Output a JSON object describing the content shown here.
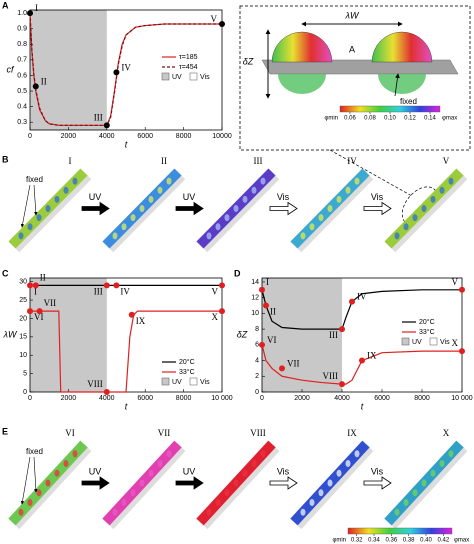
{
  "chart_data": [
    {
      "type": "line",
      "panel": "A",
      "x_label": "t",
      "y_label": "cf",
      "x": [
        0,
        100,
        200,
        300,
        500,
        800,
        1000,
        1500,
        2000,
        3000,
        4000,
        4200,
        4400,
        4600,
        4800,
        5000,
        5500,
        6000,
        7000,
        8000,
        10000
      ],
      "series": [
        {
          "name": "τ=185",
          "color": "#e02020",
          "dashed": false,
          "values": [
            1.0,
            0.75,
            0.6,
            0.5,
            0.38,
            0.31,
            0.29,
            0.28,
            0.28,
            0.28,
            0.28,
            0.34,
            0.5,
            0.68,
            0.8,
            0.86,
            0.91,
            0.92,
            0.93,
            0.93,
            0.93
          ]
        },
        {
          "name": "τ=454",
          "color": "#7a1010",
          "dashed": true,
          "values": [
            1.0,
            0.76,
            0.61,
            0.51,
            0.39,
            0.31,
            0.29,
            0.28,
            0.28,
            0.28,
            0.28,
            0.33,
            0.49,
            0.67,
            0.79,
            0.86,
            0.91,
            0.92,
            0.93,
            0.93,
            0.93
          ]
        }
      ],
      "points": [
        {
          "label": "I",
          "x": 0,
          "y": 1.0,
          "place": "right"
        },
        {
          "label": "II",
          "x": 300,
          "y": 0.53,
          "place": "right"
        },
        {
          "label": "III",
          "x": 4000,
          "y": 0.28,
          "place": "above-left"
        },
        {
          "label": "IV",
          "x": 4500,
          "y": 0.62,
          "place": "right"
        },
        {
          "label": "V",
          "x": 10000,
          "y": 0.93,
          "place": "left"
        }
      ],
      "point_color": "#000000",
      "shaded_x": [
        0,
        4000
      ],
      "shade_color": "#c8c8c8",
      "regions": [
        "UV",
        "Vis"
      ],
      "xlim": [
        0,
        10000
      ],
      "ylim": [
        0.25,
        1.02
      ],
      "xticks": [
        0,
        2000,
        4000,
        6000,
        8000,
        10000
      ],
      "yticks": [
        0.3,
        0.4,
        0.5,
        0.6,
        0.7,
        0.8,
        0.9,
        {
          "value": 1.0,
          "label": "1.0"
        }
      ],
      "legend": "center right"
    },
    {
      "type": "line",
      "panel": "C",
      "x_label": "t",
      "y_label": "λW",
      "x": [
        0,
        100,
        500,
        1000,
        1500,
        1600,
        2000,
        4000,
        4500,
        5000,
        5200,
        5400,
        5600,
        6000,
        8000,
        10000
      ],
      "series": [
        {
          "name": "20°C",
          "color": "#000000",
          "dashed": false,
          "values": [
            29,
            29,
            29,
            29,
            29,
            29,
            29,
            29,
            29,
            29,
            29,
            29,
            29,
            29,
            29,
            29
          ]
        },
        {
          "name": "33°C",
          "color": "#e02020",
          "dashed": false,
          "values": [
            22,
            22,
            22,
            22,
            22,
            0,
            0,
            0,
            0,
            0,
            15,
            21,
            22,
            22,
            22,
            22
          ]
        }
      ],
      "points": [
        {
          "label": "I",
          "x": 0,
          "y": 29,
          "place": "below-right"
        },
        {
          "label": "II",
          "x": 300,
          "y": 29,
          "place": "above-right"
        },
        {
          "label": "III",
          "x": 4000,
          "y": 29,
          "place": "below-left"
        },
        {
          "label": "IV",
          "x": 4500,
          "y": 29,
          "place": "below-right"
        },
        {
          "label": "V",
          "x": 10000,
          "y": 29,
          "place": "below-left"
        },
        {
          "label": "VI",
          "x": 0,
          "y": 22,
          "place": "below-right"
        },
        {
          "label": "VII",
          "x": 500,
          "y": 22,
          "place": "above-right"
        },
        {
          "label": "VIII",
          "x": 4000,
          "y": 0,
          "place": "above-left"
        },
        {
          "label": "IX",
          "x": 5300,
          "y": 21,
          "place": "below-right"
        },
        {
          "label": "X",
          "x": 10000,
          "y": 22,
          "place": "below-left"
        }
      ],
      "point_color": "#e02020",
      "shaded_x": [
        0,
        4000
      ],
      "shade_color": "#c8c8c8",
      "regions": [
        "UV",
        "Vis"
      ],
      "xlim": [
        0,
        10000
      ],
      "ylim": [
        0,
        31
      ],
      "xticks": [
        0,
        2000,
        4000,
        6000,
        8000,
        {
          "value": 10000,
          "label": "10 000"
        }
      ],
      "yticks": [
        0,
        5,
        10,
        15,
        20,
        25,
        30
      ],
      "legend": "lower right"
    },
    {
      "type": "line",
      "panel": "D",
      "x_label": "t",
      "y_label": "δZ",
      "x": [
        0,
        200,
        500,
        1000,
        2000,
        3000,
        4000,
        4200,
        4500,
        5000,
        6000,
        8000,
        10000
      ],
      "series": [
        {
          "name": "20°C",
          "color": "#000000",
          "dashed": false,
          "values": [
            13,
            11,
            9,
            8.2,
            8,
            8,
            8,
            9.5,
            11.5,
            12.5,
            12.8,
            13,
            13
          ]
        },
        {
          "name": "33°C",
          "color": "#e02020",
          "dashed": false,
          "values": [
            6,
            4,
            3,
            2,
            1.5,
            1.2,
            1,
            1,
            1.5,
            4,
            5,
            5.2,
            5.2
          ]
        }
      ],
      "points": [
        {
          "label": "I",
          "x": 0,
          "y": 13,
          "place": "above-right"
        },
        {
          "label": "II",
          "x": 200,
          "y": 11,
          "place": "below-right"
        },
        {
          "label": "III",
          "x": 4000,
          "y": 8,
          "place": "below-left"
        },
        {
          "label": "IV",
          "x": 4500,
          "y": 11.5,
          "place": "right"
        },
        {
          "label": "V",
          "x": 10000,
          "y": 13,
          "place": "above-left"
        },
        {
          "label": "VI",
          "x": 0,
          "y": 6,
          "place": "right"
        },
        {
          "label": "VII",
          "x": 1000,
          "y": 3,
          "place": "right"
        },
        {
          "label": "VIII",
          "x": 4000,
          "y": 1,
          "place": "above-left"
        },
        {
          "label": "IX",
          "x": 5000,
          "y": 4,
          "place": "right"
        },
        {
          "label": "X",
          "x": 10000,
          "y": 5.2,
          "place": "above-left"
        }
      ],
      "point_color": "#e02020",
      "shaded_x": [
        0,
        4000
      ],
      "shade_color": "#c8c8c8",
      "regions": [
        "UV",
        "Vis"
      ],
      "xlim": [
        0,
        10000
      ],
      "ylim": [
        0,
        14.5
      ],
      "xticks": [
        0,
        2000,
        4000,
        6000,
        8000,
        {
          "value": 10000,
          "label": "10 000"
        }
      ],
      "yticks": [
        0,
        2,
        4,
        6,
        8,
        10,
        12,
        14
      ],
      "legend": "center right"
    }
  ],
  "inset": {
    "width_label": "λW",
    "height_label": "δZ",
    "point_label": "A",
    "fixed_label": "fixed",
    "colorbar": {
      "min_label": "φmin",
      "max_label": "φmax",
      "clim": [
        0.05,
        0.15
      ],
      "ticks": [
        0.06,
        0.08,
        {
          "value": 0.1,
          "label": "0.10"
        },
        0.12,
        0.14
      ]
    }
  },
  "panel_b": {
    "panel": "B",
    "fixed_label": "fixed",
    "stages": [
      {
        "label": "I",
        "color": "#9ccc3c",
        "spot": "#3a78c8"
      },
      {
        "label": "II",
        "color": "#3c8ce0",
        "spot": "#c8e070"
      },
      {
        "label": "III",
        "color": "#5a3cc8",
        "spot": "#a0b0f0"
      },
      {
        "label": "IV",
        "color": "#3caad0",
        "spot": "#d0e060"
      },
      {
        "label": "V",
        "color": "#9ccc3c",
        "spot": "#3a78c8"
      }
    ],
    "transitions": [
      {
        "label": "UV",
        "style": "filled"
      },
      {
        "label": "UV",
        "style": "filled"
      },
      {
        "label": "Vis",
        "style": "hollow"
      },
      {
        "label": "Vis",
        "style": "hollow"
      }
    ]
  },
  "panel_e": {
    "panel": "E",
    "fixed_label": "fixed",
    "stages": [
      {
        "label": "VI",
        "color": "#6cc850",
        "spot": "#e04040"
      },
      {
        "label": "VII",
        "color": "#e040b0",
        "spot": "#e858c0"
      },
      {
        "label": "VIII",
        "color": "#e02030",
        "spot": "#e83040"
      },
      {
        "label": "IX",
        "color": "#3050d0",
        "spot": "#d8e0f8"
      },
      {
        "label": "X",
        "color": "#30a0c8",
        "spot": "#6cd060"
      }
    ],
    "transitions": [
      {
        "label": "UV",
        "style": "filled"
      },
      {
        "label": "UV",
        "style": "filled"
      },
      {
        "label": "Vis",
        "style": "hollow"
      },
      {
        "label": "Vis",
        "style": "hollow"
      }
    ],
    "colorbar": {
      "min_label": "φmin",
      "max_label": "φmax",
      "clim": [
        0.31,
        0.43
      ],
      "ticks": [
        0.32,
        0.34,
        0.36,
        0.38,
        {
          "value": 0.4,
          "label": "0.40"
        },
        0.42
      ]
    }
  }
}
